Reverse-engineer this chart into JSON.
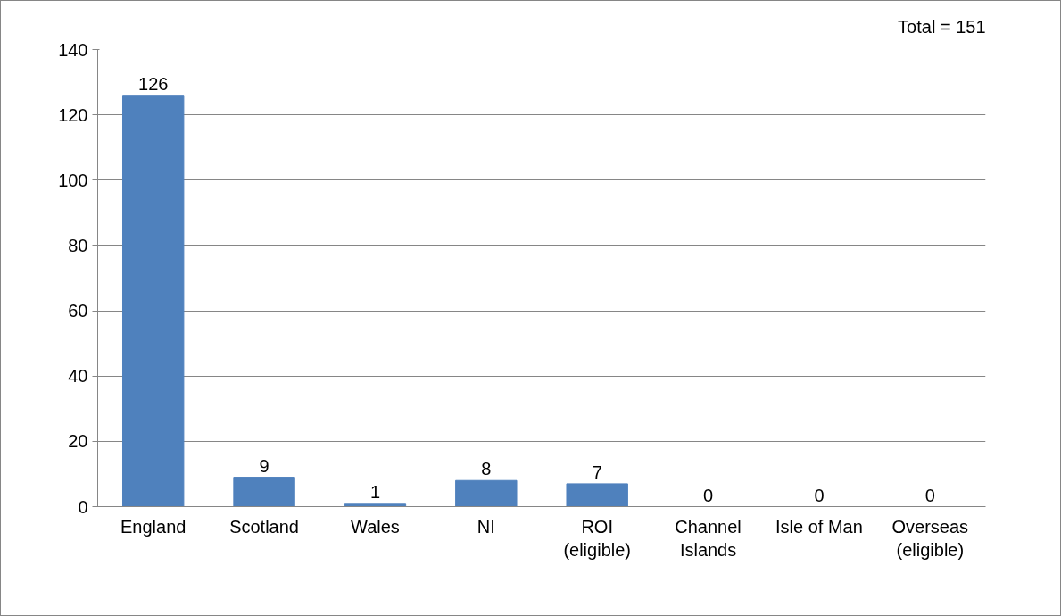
{
  "chart_data": {
    "type": "bar",
    "categories": [
      "England",
      "Scotland",
      "Wales",
      "NI",
      "ROI\n(eligible)",
      "Channel\nIslands",
      "Isle of Man",
      "Overseas\n(eligible)"
    ],
    "values": [
      126,
      9,
      1,
      8,
      7,
      0,
      0,
      0
    ],
    "color": "#4f81bd",
    "ylim": [
      0,
      140
    ],
    "yticks": [
      0,
      20,
      40,
      60,
      80,
      100,
      120,
      140
    ],
    "grid": "y",
    "data_labels": true,
    "annotations": [
      "Total = 151"
    ]
  }
}
